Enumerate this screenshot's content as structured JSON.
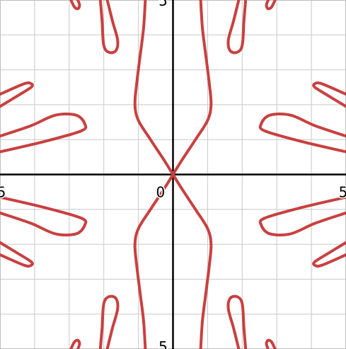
{
  "chart_data": {
    "type": "line",
    "title": "",
    "xlabel": "",
    "ylabel": "",
    "xlim": [
      -5,
      5
    ],
    "ylim": [
      -5,
      5
    ],
    "grid": true,
    "grid_step": 1,
    "origin_label": "0",
    "x_tick_labels": [
      {
        "value": -5,
        "text": "5"
      },
      {
        "value": 5,
        "text": "5"
      }
    ],
    "y_tick_labels": [
      {
        "value": 5,
        "text": "5"
      },
      {
        "value": -5,
        "text": "5"
      }
    ],
    "series": [
      {
        "name": "",
        "color": "#c94040",
        "kind": "central-curve",
        "points": [
          [
            0.0,
            0.0
          ],
          [
            0.25,
            0.4
          ],
          [
            0.65,
            1.0
          ],
          [
            1.0,
            1.55
          ],
          [
            1.1,
            2.0
          ],
          [
            1.05,
            2.6
          ],
          [
            0.95,
            3.4
          ],
          [
            0.85,
            4.2
          ],
          [
            0.8,
            5.0
          ]
        ]
      },
      {
        "name": "",
        "color": "#c94040",
        "kind": "petal",
        "points": [
          [
            -5.0,
            0.65
          ],
          [
            -3.7,
            0.95
          ],
          [
            -2.65,
            1.25
          ],
          [
            -2.55,
            1.45
          ],
          [
            -2.8,
            1.7
          ],
          [
            -3.4,
            1.7
          ],
          [
            -4.1,
            1.4
          ],
          [
            -5.0,
            1.1
          ]
        ]
      },
      {
        "name": "",
        "color": "#c94040",
        "kind": "petal",
        "points": [
          [
            -5.0,
            1.95
          ],
          [
            -4.5,
            2.25
          ],
          [
            -4.1,
            2.5
          ],
          [
            -4.1,
            2.6
          ],
          [
            -4.3,
            2.6
          ],
          [
            -5.0,
            2.3
          ]
        ]
      },
      {
        "name": "",
        "color": "#c94040",
        "kind": "petal",
        "points": [
          [
            -2.1,
            5.0
          ],
          [
            -2.05,
            4.4
          ],
          [
            -2.0,
            3.7
          ],
          [
            -1.85,
            3.5
          ],
          [
            -1.65,
            3.55
          ],
          [
            -1.6,
            3.85
          ],
          [
            -1.75,
            4.4
          ],
          [
            -1.9,
            5.0
          ]
        ]
      },
      {
        "name": "",
        "color": "#c94040",
        "kind": "petal",
        "points": [
          [
            -2.95,
            5.0
          ],
          [
            -2.85,
            4.8
          ],
          [
            -2.75,
            4.75
          ],
          [
            -2.7,
            4.85
          ],
          [
            -2.75,
            5.0
          ]
        ]
      }
    ]
  }
}
